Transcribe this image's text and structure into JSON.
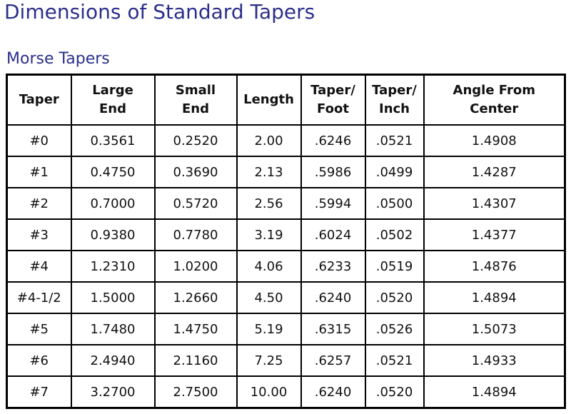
{
  "header": {
    "title": "Dimensions of Standard Tapers",
    "subtitle": "Morse Tapers"
  },
  "table": {
    "columns": [
      "Taper",
      "Large\nEnd",
      "Small\nEnd",
      "Length",
      "Taper/\nFoot",
      "Taper/\nInch",
      "Angle From\nCenter"
    ],
    "rows": [
      [
        "#0",
        "0.3561",
        "0.2520",
        "2.00",
        ".6246",
        ".0521",
        "1.4908"
      ],
      [
        "#1",
        "0.4750",
        "0.3690",
        "2.13",
        ".5986",
        ".0499",
        "1.4287"
      ],
      [
        "#2",
        "0.7000",
        "0.5720",
        "2.56",
        ".5994",
        ".0500",
        "1.4307"
      ],
      [
        "#3",
        "0.9380",
        "0.7780",
        "3.19",
        ".6024",
        ".0502",
        "1.4377"
      ],
      [
        "#4",
        "1.2310",
        "1.0200",
        "4.06",
        ".6233",
        ".0519",
        "1.4876"
      ],
      [
        "#4-1/2",
        "1.5000",
        "1.2660",
        "4.50",
        ".6240",
        ".0520",
        "1.4894"
      ],
      [
        "#5",
        "1.7480",
        "1.4750",
        "5.19",
        ".6315",
        ".0526",
        "1.5073"
      ],
      [
        "#6",
        "2.4940",
        "2.1160",
        "7.25",
        ".6257",
        ".0521",
        "1.4933"
      ],
      [
        "#7",
        "3.2700",
        "2.7500",
        "10.00",
        ".6240",
        ".0520",
        "1.4894"
      ]
    ]
  }
}
